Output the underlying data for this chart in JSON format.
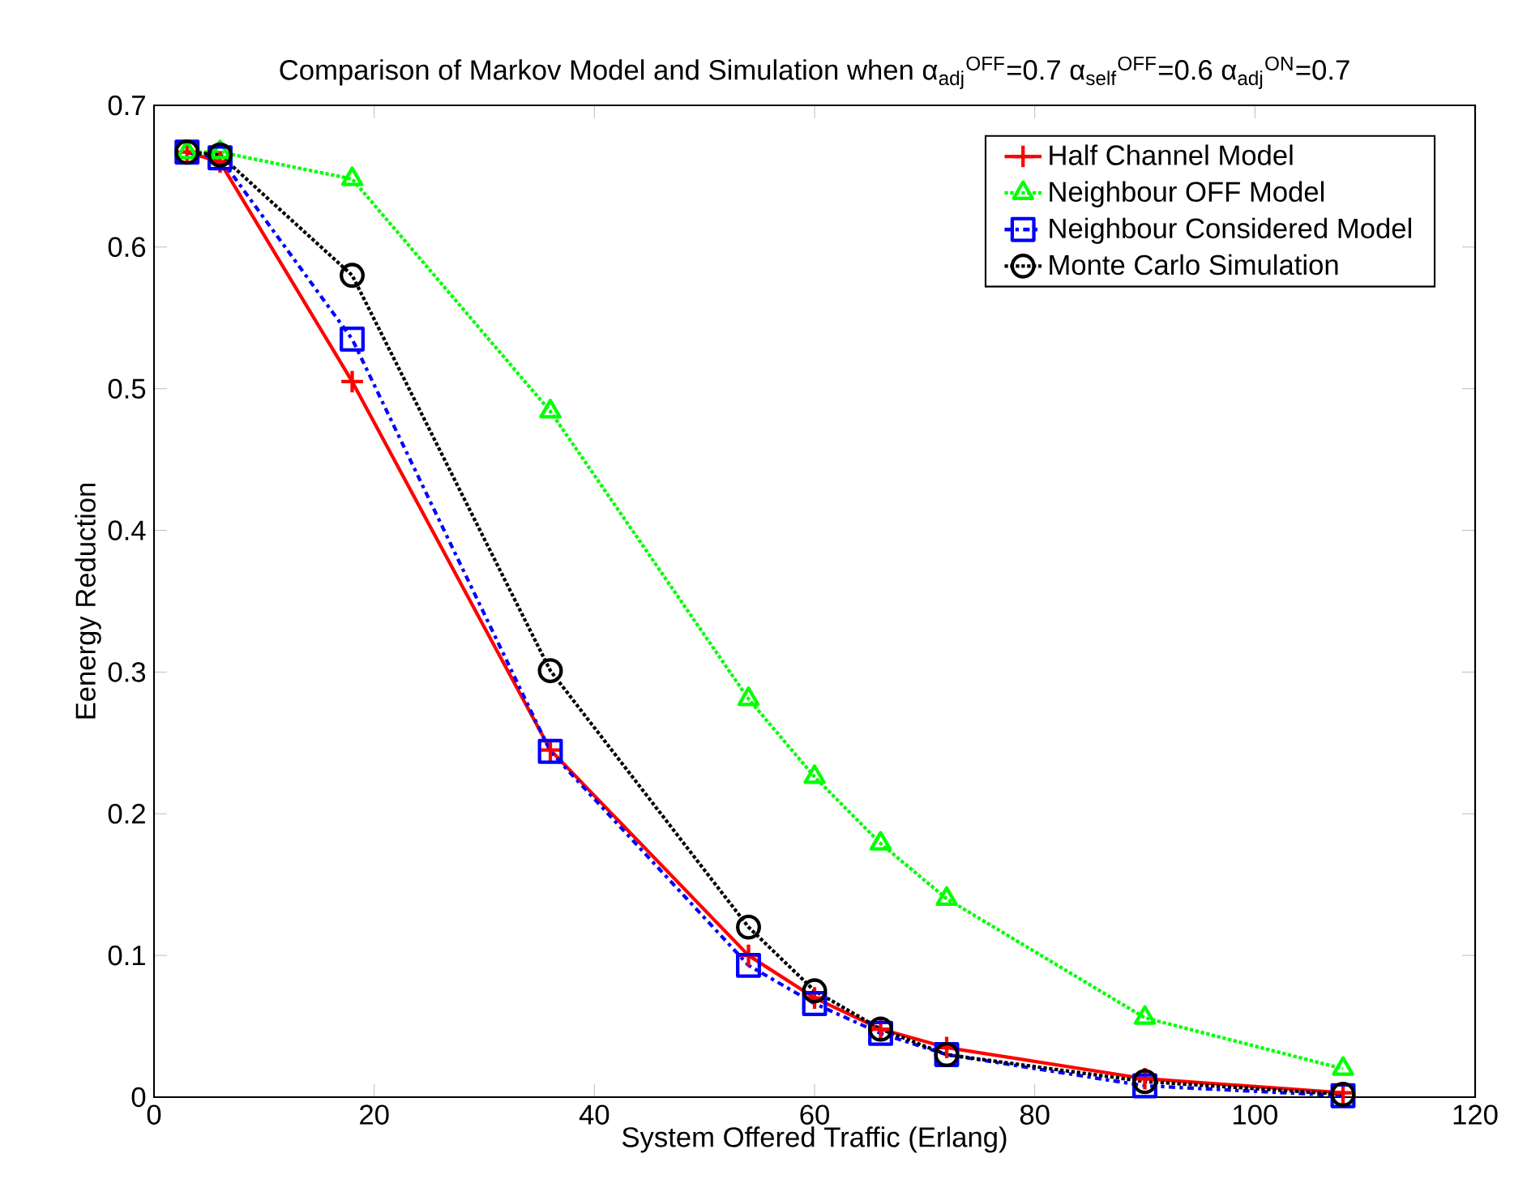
{
  "chart_data": {
    "type": "line",
    "title": "Comparison of Markov Model and Simulation when α$_{adj}$$^{OFF}$=0.7 α$_{self}$$^{OFF}$=0.6 α$_{adj}$$^{ON}$=0.7",
    "xlabel": "System Offered Traffic (Erlang)",
    "ylabel": "Eenergy Reduction",
    "x": [
      3,
      6,
      18,
      36,
      54,
      60,
      66,
      72,
      90,
      108
    ],
    "series": [
      {
        "name": "Half Channel Model",
        "color": "#ff0000",
        "marker": "cross",
        "line_style": "solid",
        "values": [
          0.667,
          0.66,
          0.505,
          0.245,
          0.1,
          0.07,
          0.048,
          0.035,
          0.013,
          0.003
        ]
      },
      {
        "name": "Neighbour OFF Model",
        "color": "#00ff00",
        "marker": "triangle",
        "line_style": "dotted",
        "values": [
          0.667,
          0.667,
          0.648,
          0.484,
          0.281,
          0.226,
          0.179,
          0.14,
          0.056,
          0.02
        ]
      },
      {
        "name": "Neighbour Considered Model",
        "color": "#0000ff",
        "marker": "square",
        "line_style": "dashdot",
        "values": [
          0.667,
          0.663,
          0.535,
          0.244,
          0.093,
          0.066,
          0.045,
          0.03,
          0.008,
          0.001
        ]
      },
      {
        "name": "Monte Carlo Simulation",
        "color": "#000000",
        "marker": "circle",
        "line_style": "dotted",
        "values": [
          0.667,
          0.665,
          0.58,
          0.301,
          0.12,
          0.075,
          0.048,
          0.03,
          0.011,
          0.002
        ]
      }
    ],
    "xlim": [
      0,
      120
    ],
    "ylim": [
      0,
      0.7
    ],
    "xticks": [
      0,
      20,
      40,
      60,
      80,
      100,
      120
    ],
    "yticks": [
      0,
      0.1,
      0.2,
      0.3,
      0.4,
      0.5,
      0.6,
      0.7
    ],
    "grid": false,
    "legend": "top right"
  }
}
